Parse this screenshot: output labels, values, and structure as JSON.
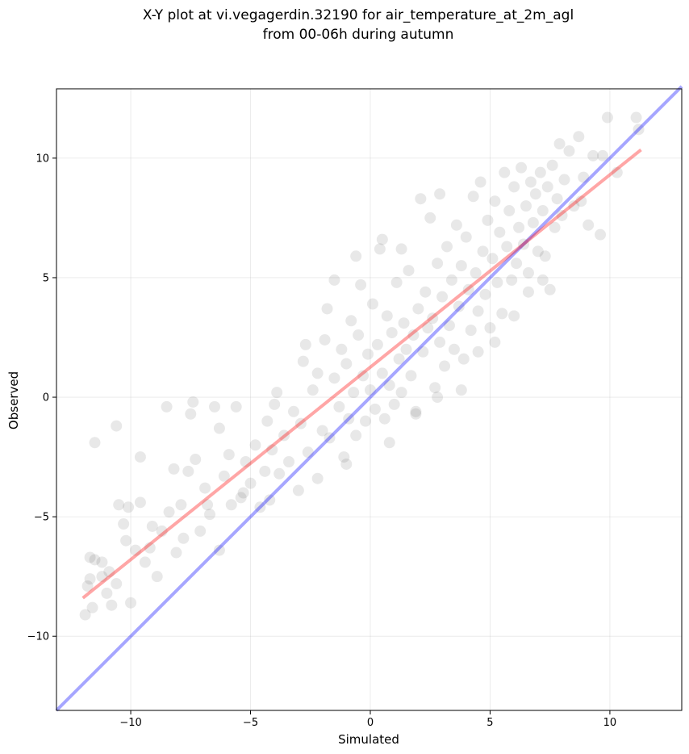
{
  "chart_data": {
    "type": "scatter",
    "title_line1": "X-Y plot at vi.vegagerdin.32190 for air_temperature_at_2m_agl",
    "title_line2": "from 00-06h during autumn",
    "xlabel": "Simulated",
    "ylabel": "Observed",
    "xlim": [
      -13.1,
      13.0
    ],
    "ylim": [
      -13.1,
      12.9
    ],
    "xticks": [
      -10,
      -5,
      0,
      5,
      10
    ],
    "yticks": [
      -10,
      -5,
      0,
      5,
      10
    ],
    "xtick_labels": [
      "−10",
      "−5",
      "0",
      "5",
      "10"
    ],
    "ytick_labels": [
      "−10",
      "−5",
      "0",
      "5",
      "10"
    ],
    "grid": true,
    "point_color": "#000000",
    "point_alpha": 0.09,
    "one_to_one_line": {
      "color": "#0000ff",
      "x": [
        -13.1,
        13.0
      ],
      "y": [
        -13.1,
        13.0
      ]
    },
    "fit_line": {
      "color": "#ff0000",
      "x": [
        -12.0,
        11.3
      ],
      "y": [
        -8.4,
        10.35
      ]
    },
    "points": [
      [
        -11.8,
        -7.9
      ],
      [
        -11.6,
        -8.8
      ],
      [
        -11.5,
        -6.8
      ],
      [
        -11.2,
        -7.5
      ],
      [
        -11.9,
        -9.1
      ],
      [
        -11.7,
        -6.7
      ],
      [
        -11.0,
        -8.2
      ],
      [
        -11.5,
        -1.9
      ],
      [
        -10.9,
        -7.3
      ],
      [
        -10.6,
        -7.8
      ],
      [
        -10.5,
        -4.5
      ],
      [
        -10.3,
        -5.3
      ],
      [
        -10.2,
        -6.0
      ],
      [
        -10.6,
        -1.2
      ],
      [
        -10.0,
        -8.6
      ],
      [
        -9.8,
        -6.4
      ],
      [
        -9.6,
        -4.4
      ],
      [
        -9.4,
        -6.9
      ],
      [
        -9.1,
        -5.4
      ],
      [
        -8.9,
        -7.5
      ],
      [
        -9.6,
        -2.5
      ],
      [
        -8.7,
        -5.6
      ],
      [
        -8.5,
        -0.4
      ],
      [
        -8.4,
        -4.8
      ],
      [
        -8.2,
        -3.0
      ],
      [
        -7.9,
        -4.5
      ],
      [
        -7.8,
        -5.9
      ],
      [
        -7.6,
        -3.1
      ],
      [
        -7.4,
        -0.2
      ],
      [
        -7.5,
        -0.7
      ],
      [
        -7.1,
        -5.6
      ],
      [
        -6.9,
        -3.8
      ],
      [
        -6.7,
        -4.9
      ],
      [
        -6.5,
        -0.4
      ],
      [
        -6.3,
        -6.4
      ],
      [
        -6.1,
        -3.3
      ],
      [
        -5.9,
        -2.4
      ],
      [
        -5.8,
        -4.5
      ],
      [
        -5.6,
        -0.4
      ],
      [
        -5.4,
        -4.2
      ],
      [
        -5.2,
        -2.7
      ],
      [
        -5.0,
        -3.6
      ],
      [
        -4.8,
        -2.0
      ],
      [
        -4.6,
        -4.6
      ],
      [
        -4.4,
        -3.1
      ],
      [
        -4.3,
        -1.0
      ],
      [
        -4.1,
        -2.2
      ],
      [
        -4.0,
        -0.3
      ],
      [
        -3.8,
        -3.2
      ],
      [
        -3.6,
        -1.6
      ],
      [
        -3.4,
        -2.7
      ],
      [
        -3.2,
        -0.6
      ],
      [
        -3.0,
        -3.9
      ],
      [
        -2.9,
        -1.1
      ],
      [
        -2.8,
        1.5
      ],
      [
        -2.6,
        -2.3
      ],
      [
        -2.4,
        0.3
      ],
      [
        -2.2,
        -3.4
      ],
      [
        -2.0,
        -1.4
      ],
      [
        -1.9,
        2.4
      ],
      [
        -1.8,
        3.7
      ],
      [
        -1.7,
        -1.7
      ],
      [
        -1.5,
        0.8
      ],
      [
        -1.3,
        -0.4
      ],
      [
        -1.2,
        2.0
      ],
      [
        -1.1,
        -2.5
      ],
      [
        -1.0,
        1.4
      ],
      [
        -0.9,
        -0.9
      ],
      [
        -0.8,
        3.2
      ],
      [
        -0.7,
        0.2
      ],
      [
        -0.6,
        -1.6
      ],
      [
        -0.5,
        2.6
      ],
      [
        -0.4,
        4.7
      ],
      [
        -0.3,
        0.9
      ],
      [
        -0.2,
        -1.0
      ],
      [
        -0.1,
        1.8
      ],
      [
        0.0,
        0.3
      ],
      [
        0.1,
        3.9
      ],
      [
        0.2,
        -0.5
      ],
      [
        0.3,
        2.2
      ],
      [
        0.4,
        6.2
      ],
      [
        0.5,
        1.0
      ],
      [
        0.6,
        -0.9
      ],
      [
        0.7,
        3.4
      ],
      [
        0.8,
        0.5
      ],
      [
        0.9,
        2.7
      ],
      [
        1.0,
        -0.3
      ],
      [
        1.1,
        4.8
      ],
      [
        1.2,
        1.6
      ],
      [
        1.3,
        0.2
      ],
      [
        1.4,
        3.1
      ],
      [
        1.5,
        2.0
      ],
      [
        1.6,
        5.3
      ],
      [
        1.7,
        0.9
      ],
      [
        1.8,
        2.6
      ],
      [
        1.9,
        -0.6
      ],
      [
        2.0,
        3.7
      ],
      [
        2.1,
        8.3
      ],
      [
        2.2,
        1.9
      ],
      [
        2.3,
        4.4
      ],
      [
        2.4,
        2.9
      ],
      [
        2.5,
        7.5
      ],
      [
        2.6,
        3.3
      ],
      [
        2.7,
        0.4
      ],
      [
        2.8,
        5.6
      ],
      [
        2.9,
        2.3
      ],
      [
        3.0,
        4.2
      ],
      [
        3.1,
        1.3
      ],
      [
        3.2,
        6.3
      ],
      [
        3.3,
        3.0
      ],
      [
        3.4,
        4.9
      ],
      [
        3.5,
        2.0
      ],
      [
        3.6,
        7.2
      ],
      [
        3.7,
        3.8
      ],
      [
        3.8,
        5.5
      ],
      [
        3.9,
        1.6
      ],
      [
        4.0,
        6.7
      ],
      [
        4.1,
        4.5
      ],
      [
        4.2,
        2.8
      ],
      [
        4.3,
        8.4
      ],
      [
        4.4,
        5.2
      ],
      [
        4.5,
        3.6
      ],
      [
        4.6,
        9.0
      ],
      [
        4.7,
        6.1
      ],
      [
        4.8,
        4.3
      ],
      [
        4.9,
        7.4
      ],
      [
        5.0,
        2.9
      ],
      [
        5.1,
        5.8
      ],
      [
        5.2,
        8.2
      ],
      [
        5.3,
        4.8
      ],
      [
        5.4,
        6.9
      ],
      [
        5.5,
        3.5
      ],
      [
        5.6,
        9.4
      ],
      [
        5.7,
        6.3
      ],
      [
        5.8,
        7.8
      ],
      [
        5.9,
        4.9
      ],
      [
        6.0,
        8.8
      ],
      [
        6.1,
        5.6
      ],
      [
        6.2,
        7.1
      ],
      [
        6.3,
        9.6
      ],
      [
        6.4,
        6.4
      ],
      [
        6.5,
        8.0
      ],
      [
        6.6,
        5.2
      ],
      [
        6.7,
        9.0
      ],
      [
        6.8,
        7.3
      ],
      [
        6.9,
        8.5
      ],
      [
        7.0,
        6.1
      ],
      [
        7.1,
        9.4
      ],
      [
        7.2,
        7.8
      ],
      [
        7.3,
        5.9
      ],
      [
        7.4,
        8.8
      ],
      [
        7.5,
        4.5
      ],
      [
        7.6,
        9.7
      ],
      [
        7.7,
        7.1
      ],
      [
        7.8,
        8.3
      ],
      [
        7.9,
        10.6
      ],
      [
        8.0,
        7.6
      ],
      [
        8.1,
        9.1
      ],
      [
        8.3,
        10.3
      ],
      [
        8.5,
        8.0
      ],
      [
        8.7,
        10.9
      ],
      [
        8.9,
        9.2
      ],
      [
        9.1,
        7.2
      ],
      [
        9.3,
        10.1
      ],
      [
        9.6,
        6.8
      ],
      [
        9.9,
        11.7
      ],
      [
        10.3,
        9.4
      ],
      [
        11.1,
        11.7
      ],
      [
        11.2,
        11.2
      ],
      [
        7.2,
        4.9
      ],
      [
        6.0,
        3.4
      ],
      [
        5.2,
        2.3
      ],
      [
        3.8,
        0.3
      ],
      [
        -0.6,
        5.9
      ],
      [
        0.5,
        6.6
      ],
      [
        1.3,
        6.2
      ],
      [
        -1.5,
        4.9
      ],
      [
        -2.7,
        2.2
      ],
      [
        2.9,
        8.5
      ],
      [
        -4.2,
        -4.3
      ],
      [
        -5.3,
        -4.0
      ],
      [
        -6.8,
        -4.5
      ],
      [
        -8.1,
        -6.5
      ],
      [
        -9.2,
        -6.3
      ],
      [
        -10.1,
        -4.6
      ],
      [
        -11.2,
        -6.9
      ],
      [
        -11.7,
        -7.6
      ],
      [
        -10.8,
        -8.7
      ],
      [
        -7.3,
        -2.6
      ],
      [
        -6.3,
        -1.3
      ],
      [
        -3.9,
        0.2
      ],
      [
        -2.2,
        1.0
      ],
      [
        0.8,
        -1.9
      ],
      [
        1.9,
        -0.7
      ],
      [
        2.8,
        0.0
      ],
      [
        -1.0,
        -2.8
      ],
      [
        4.5,
        1.9
      ],
      [
        6.6,
        4.4
      ],
      [
        8.8,
        8.2
      ],
      [
        9.7,
        10.1
      ]
    ]
  }
}
